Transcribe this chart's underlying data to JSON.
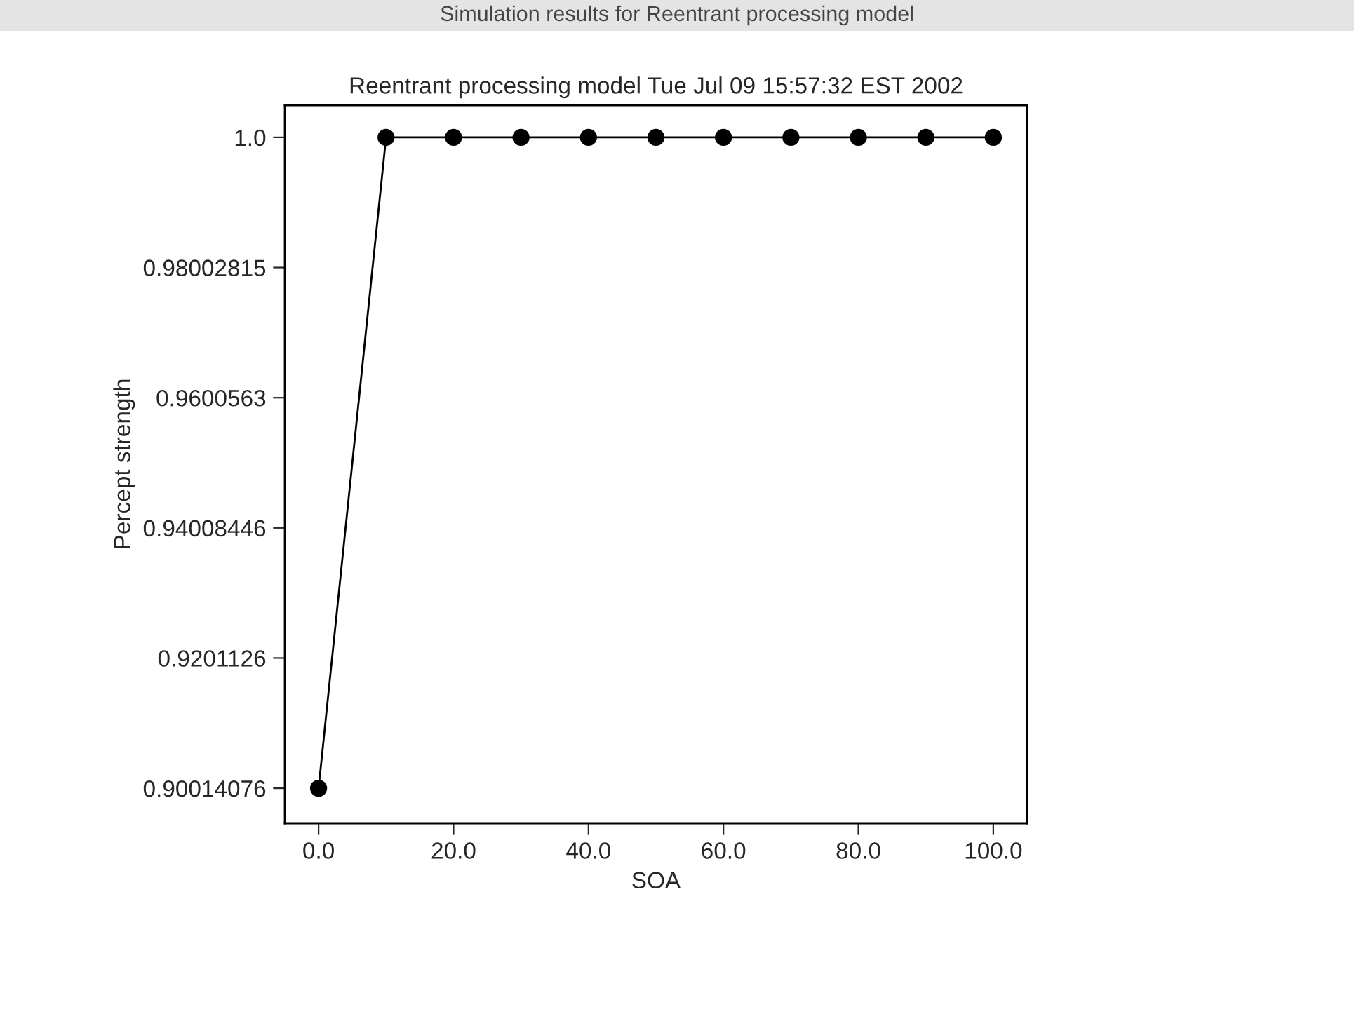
{
  "chart_data": {
    "type": "line",
    "title": "Simulation results for Reentrant processing model",
    "subtitle": "Reentrant processing model Tue Jul 09 15:57:32 EST 2002",
    "xlabel": "SOA",
    "ylabel": "Percept strength",
    "x": [
      0,
      10,
      20,
      30,
      40,
      50,
      60,
      70,
      80,
      90,
      100
    ],
    "series": [
      {
        "color": "#000000",
        "values": [
          0.90014076,
          1.0,
          1.0,
          1.0,
          1.0,
          1.0,
          1.0,
          1.0,
          1.0,
          1.0,
          1.0
        ]
      }
    ],
    "xlim": [
      -5,
      105
    ],
    "xticks": [
      {
        "value": 0,
        "label": "0.0"
      },
      {
        "value": 20,
        "label": "20.0"
      },
      {
        "value": 40,
        "label": "40.0"
      },
      {
        "value": 60,
        "label": "60.0"
      },
      {
        "value": 80,
        "label": "80.0"
      },
      {
        "value": 100,
        "label": "100.0"
      }
    ],
    "ylim": [
      0.89477,
      1.00494
    ],
    "yticks": [
      0.90014076,
      0.9201126,
      0.94008446,
      0.9600563,
      0.98002815,
      {
        "value": 1.0,
        "label": "1.0"
      }
    ],
    "marker": "circle",
    "line_style": "solid",
    "grid": false
  }
}
